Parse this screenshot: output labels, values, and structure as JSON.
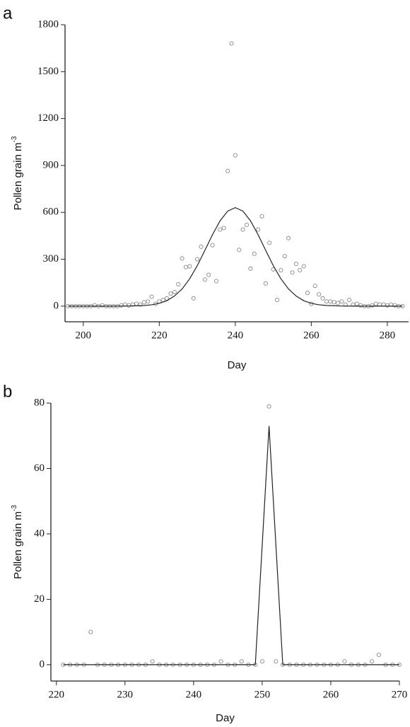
{
  "chart_data": [
    {
      "type": "scatter",
      "panel_label": "a",
      "x_label": "Day",
      "y_label": "Pollen grain m",
      "y_label_superscript": "-3",
      "xlim": [
        195.2,
        285.6
      ],
      "ylim": [
        -100,
        1800
      ],
      "xticks": [
        200,
        220,
        240,
        260,
        280
      ],
      "yticks": [
        0,
        300,
        600,
        900,
        1200,
        1500,
        1800
      ],
      "series": [
        {
          "mode": "markers",
          "color": "#8a8a8a",
          "x": [
            196,
            197,
            198,
            199,
            200,
            201,
            202,
            203,
            204,
            205,
            206,
            207,
            208,
            209,
            210,
            211,
            212,
            213,
            214,
            215,
            216,
            217,
            218,
            219,
            220,
            221,
            222,
            223,
            224,
            225,
            226,
            227,
            228,
            229,
            230,
            231,
            232,
            233,
            234,
            235,
            236,
            237,
            238,
            239,
            240,
            241,
            242,
            243,
            244,
            245,
            246,
            247,
            248,
            249,
            250,
            251,
            252,
            253,
            254,
            255,
            256,
            257,
            258,
            259,
            260,
            261,
            262,
            263,
            264,
            265,
            266,
            267,
            268,
            269,
            270,
            271,
            272,
            273,
            274,
            275,
            276,
            277,
            278,
            279,
            280,
            281,
            282,
            283,
            284
          ],
          "values": [
            0,
            0,
            0,
            0,
            0,
            0,
            0,
            5,
            0,
            5,
            0,
            0,
            0,
            0,
            5,
            10,
            5,
            10,
            15,
            10,
            25,
            30,
            60,
            15,
            30,
            40,
            50,
            80,
            90,
            140,
            305,
            250,
            255,
            50,
            300,
            380,
            170,
            200,
            390,
            160,
            490,
            500,
            865,
            1680,
            965,
            360,
            490,
            520,
            240,
            335,
            490,
            575,
            145,
            405,
            235,
            40,
            230,
            320,
            435,
            215,
            270,
            230,
            255,
            85,
            15,
            130,
            75,
            50,
            30,
            30,
            25,
            20,
            30,
            10,
            40,
            10,
            15,
            5,
            0,
            0,
            5,
            15,
            10,
            10,
            5,
            10,
            5,
            0,
            0
          ]
        },
        {
          "mode": "line",
          "color": "#222222",
          "x": [
            196,
            200,
            204,
            208,
            212,
            216,
            218,
            220,
            222,
            224,
            226,
            228,
            230,
            232,
            234,
            236,
            238,
            240,
            242,
            244,
            246,
            248,
            250,
            252,
            254,
            256,
            258,
            260,
            262,
            264,
            268,
            272,
            276,
            280,
            284
          ],
          "values": [
            0,
            0,
            0,
            0,
            1,
            4,
            9,
            18,
            35,
            65,
            110,
            175,
            259,
            357,
            457,
            546,
            608,
            630,
            608,
            546,
            457,
            357,
            259,
            175,
            110,
            65,
            35,
            18,
            9,
            4,
            1,
            0,
            0,
            0,
            0
          ]
        }
      ]
    },
    {
      "type": "scatter",
      "panel_label": "b",
      "x_label": "Day",
      "y_label": "Pollen grain m",
      "y_label_superscript": "-3",
      "xlim": [
        219.2,
        270
      ],
      "ylim": [
        -5,
        80
      ],
      "xticks": [
        220,
        230,
        240,
        250,
        260,
        270
      ],
      "yticks": [
        0,
        20,
        40,
        60,
        80
      ],
      "series": [
        {
          "mode": "markers",
          "color": "#8a8a8a",
          "x": [
            221,
            222,
            223,
            224,
            225,
            226,
            227,
            228,
            229,
            230,
            231,
            232,
            233,
            234,
            235,
            236,
            237,
            238,
            239,
            240,
            241,
            242,
            243,
            244,
            245,
            246,
            247,
            248,
            249,
            250,
            251,
            252,
            253,
            254,
            255,
            256,
            257,
            258,
            259,
            260,
            261,
            262,
            263,
            264,
            265,
            266,
            267,
            268,
            269,
            270
          ],
          "values": [
            0,
            0,
            0,
            0,
            10,
            0,
            0,
            0,
            0,
            0,
            0,
            0,
            0,
            1,
            0,
            0,
            0,
            0,
            0,
            0,
            0,
            0,
            0,
            1,
            0,
            0,
            1,
            0,
            0,
            1,
            79,
            1,
            0,
            0,
            0,
            0,
            0,
            0,
            0,
            0,
            0,
            1,
            0,
            0,
            0,
            1,
            3,
            0,
            0,
            0
          ]
        },
        {
          "mode": "line",
          "color": "#222222",
          "x": [
            221,
            249,
            251,
            253,
            270
          ],
          "values": [
            0,
            0,
            73,
            0,
            0
          ]
        }
      ]
    }
  ]
}
